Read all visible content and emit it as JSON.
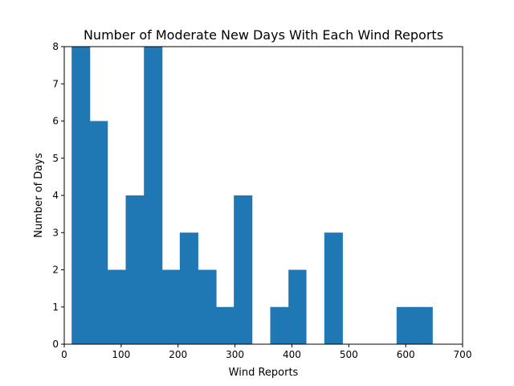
{
  "chart_data": {
    "type": "bar",
    "title": "Number of Moderate New Days With Each Wind Reports",
    "xlabel": "Wind Reports",
    "ylabel": "Number of Days",
    "xlim": [
      0,
      700
    ],
    "ylim": [
      0,
      8
    ],
    "xticks": [
      0,
      100,
      200,
      300,
      400,
      500,
      600,
      700
    ],
    "yticks": [
      0,
      1,
      2,
      3,
      4,
      5,
      6,
      7,
      8
    ],
    "bar_color": "#1f77b4",
    "grid": false,
    "bins": [
      {
        "x0": 13,
        "x1": 45,
        "value": 8
      },
      {
        "x0": 45,
        "x1": 76,
        "value": 6
      },
      {
        "x0": 76,
        "x1": 108,
        "value": 2
      },
      {
        "x0": 108,
        "x1": 140,
        "value": 4
      },
      {
        "x0": 140,
        "x1": 172,
        "value": 8
      },
      {
        "x0": 172,
        "x1": 203,
        "value": 2
      },
      {
        "x0": 203,
        "x1": 235,
        "value": 3
      },
      {
        "x0": 235,
        "x1": 267,
        "value": 2
      },
      {
        "x0": 267,
        "x1": 298,
        "value": 1
      },
      {
        "x0": 298,
        "x1": 330,
        "value": 4
      },
      {
        "x0": 330,
        "x1": 362,
        "value": 0
      },
      {
        "x0": 362,
        "x1": 394,
        "value": 1
      },
      {
        "x0": 394,
        "x1": 425,
        "value": 2
      },
      {
        "x0": 425,
        "x1": 457,
        "value": 0
      },
      {
        "x0": 457,
        "x1": 489,
        "value": 3
      },
      {
        "x0": 489,
        "x1": 520,
        "value": 0
      },
      {
        "x0": 520,
        "x1": 552,
        "value": 0
      },
      {
        "x0": 552,
        "x1": 584,
        "value": 0
      },
      {
        "x0": 584,
        "x1": 616,
        "value": 1
      },
      {
        "x0": 616,
        "x1": 647,
        "value": 1
      }
    ]
  }
}
